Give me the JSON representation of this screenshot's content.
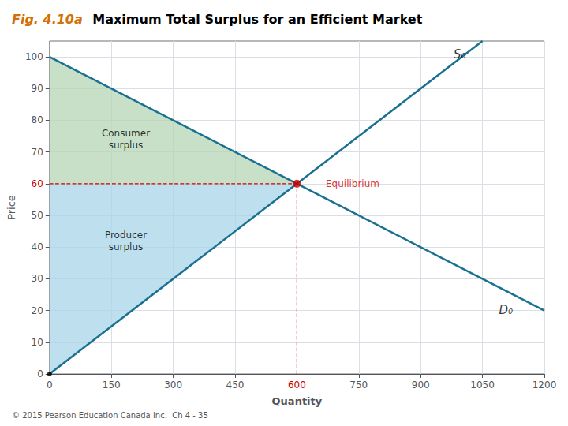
{
  "chart_data": {
    "type": "line",
    "figure_label": "Fig. 4.10a",
    "figure_label_color": "#d4700a",
    "title": "Maximum Total Surplus for an Efficient Market",
    "xlabel": "Quantity",
    "ylabel": "Price",
    "xlim": [
      0,
      1200
    ],
    "ylim": [
      0,
      105
    ],
    "xticks": [
      0,
      150,
      300,
      450,
      600,
      750,
      900,
      1050,
      1200
    ],
    "yticks": [
      0,
      10,
      20,
      30,
      40,
      50,
      60,
      70,
      80,
      90,
      100
    ],
    "grid": true,
    "series": [
      {
        "name": "S₀",
        "color": "#1a7090",
        "x": [
          0,
          1050
        ],
        "values": [
          0,
          105
        ],
        "label_x": 980,
        "label_y": 99
      },
      {
        "name": "D₀",
        "color": "#1a7090",
        "x": [
          0,
          1200
        ],
        "values": [
          100,
          20
        ],
        "label_x": 1090,
        "label_y": 22
      }
    ],
    "areas": [
      {
        "name": "Consumer\nsurplus",
        "color": "#b5d5b5",
        "x": [
          0,
          600,
          0
        ],
        "y": [
          100,
          60,
          60
        ],
        "label_x": 185,
        "label_y": 74
      },
      {
        "name": "Producer\nsurplus",
        "color": "#a8d4e8",
        "x": [
          0,
          600,
          0
        ],
        "y": [
          0,
          60,
          60
        ],
        "label_x": 185,
        "label_y": 42
      }
    ],
    "equilibrium": {
      "x": 600,
      "y": 60,
      "label": "Equilibrium",
      "color": "#cc0000",
      "label_x": 670,
      "label_y": 60
    },
    "origin_point": {
      "x": 0,
      "y": 0,
      "color": "#000000"
    },
    "footer": "© 2015 Pearson Education Canada Inc.  Ch 4 - 35"
  }
}
